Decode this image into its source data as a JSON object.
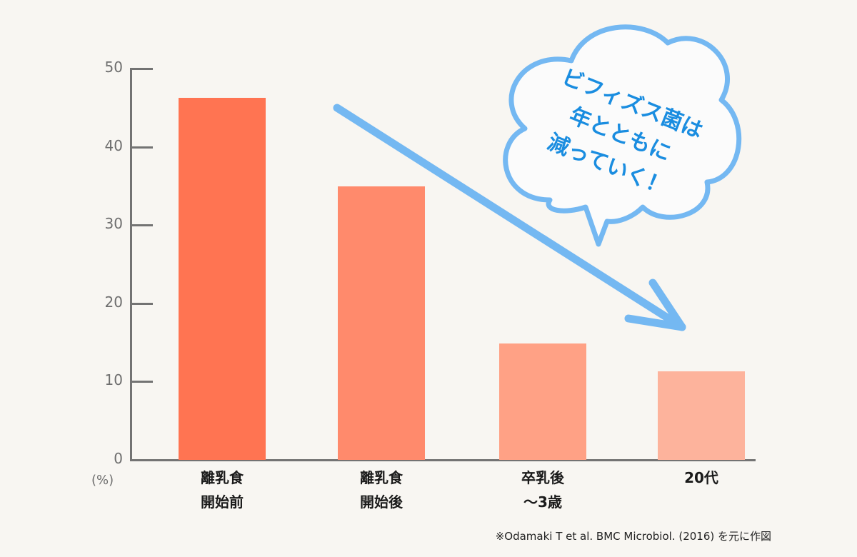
{
  "chart_data": {
    "type": "bar",
    "title": "",
    "categories": [
      "離乳食\n開始前",
      "離乳食\n開始後",
      "卒乳後\n〜3歳",
      "20代"
    ],
    "values": [
      46.3,
      34.9,
      14.9,
      11.3
    ],
    "bar_colors": [
      "#ff7452",
      "#ff8a6c",
      "#ffa185",
      "#fdb39c"
    ],
    "xlabel": "",
    "ylabel": "(%)",
    "ylim": [
      0,
      50
    ],
    "yticks": [
      0,
      10,
      20,
      30,
      40,
      50
    ],
    "grid": false,
    "annotations": [
      {
        "type": "speech-bubble",
        "text": "ビフィズス菌は\n年とともに\n減っていく！",
        "color": "#1a8de0"
      },
      {
        "type": "arrow",
        "direction": "down-right",
        "color": "#74b8f2"
      }
    ],
    "source_note": "※Odamaki T et al. BMC Microbiol. (2016) を元に作図"
  },
  "axis": {
    "unit": "(%)",
    "ticks": [
      "0",
      "10",
      "20",
      "30",
      "40",
      "50"
    ]
  },
  "labels": [
    "離乳食\n開始前",
    "離乳食\n開始後",
    "卒乳後\n〜3歳",
    "20代"
  ],
  "bubble": {
    "text": "ビフィズス菌は\n年とともに\n減っていく！"
  },
  "footer": {
    "note": "※Odamaki T et al. BMC Microbiol. (2016) を元に作図"
  }
}
